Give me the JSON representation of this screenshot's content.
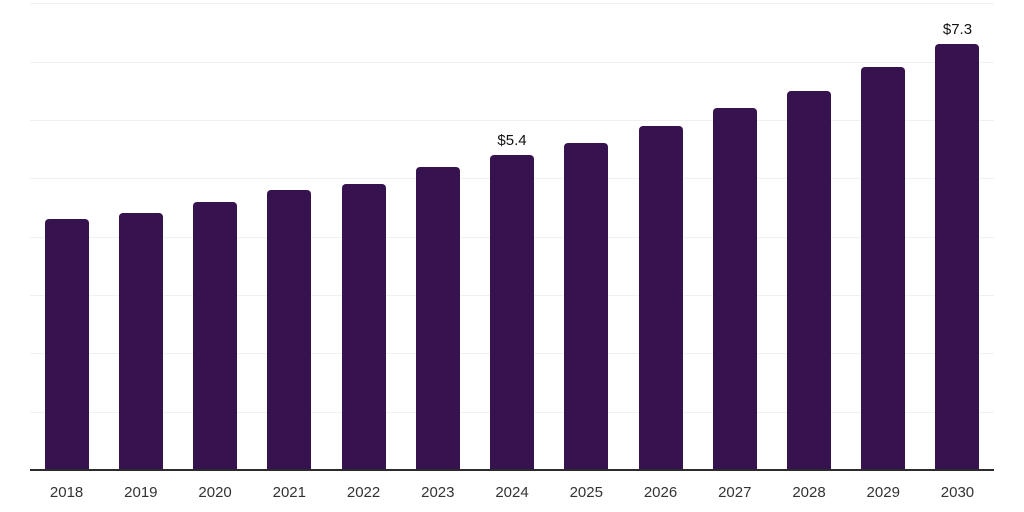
{
  "colors": {
    "background": "#ffffff",
    "bar": "#36124f",
    "gridline": "#f0f0f0",
    "axis_line": "#2b2b2b",
    "tick_label": "#333333",
    "data_label": "#111111"
  },
  "chart_data": {
    "type": "bar",
    "title": "",
    "xlabel": "",
    "ylabel": "",
    "categories": [
      "2018",
      "2019",
      "2020",
      "2021",
      "2022",
      "2023",
      "2024",
      "2025",
      "2026",
      "2027",
      "2028",
      "2029",
      "2030"
    ],
    "values": [
      4.3,
      4.4,
      4.6,
      4.8,
      4.9,
      5.2,
      5.4,
      5.6,
      5.9,
      6.2,
      6.5,
      6.9,
      7.3
    ],
    "data_labels": [
      "",
      "",
      "",
      "",
      "",
      "",
      "$5.4",
      "",
      "",
      "",
      "",
      "",
      "$7.3"
    ],
    "value_prefix": "$",
    "ylim": [
      0,
      8
    ],
    "gridline_values": [
      1,
      2,
      3,
      4,
      5,
      6,
      7,
      8
    ],
    "grid": "horizontal",
    "legend_position": "none",
    "y_axis_labels_visible": false
  }
}
